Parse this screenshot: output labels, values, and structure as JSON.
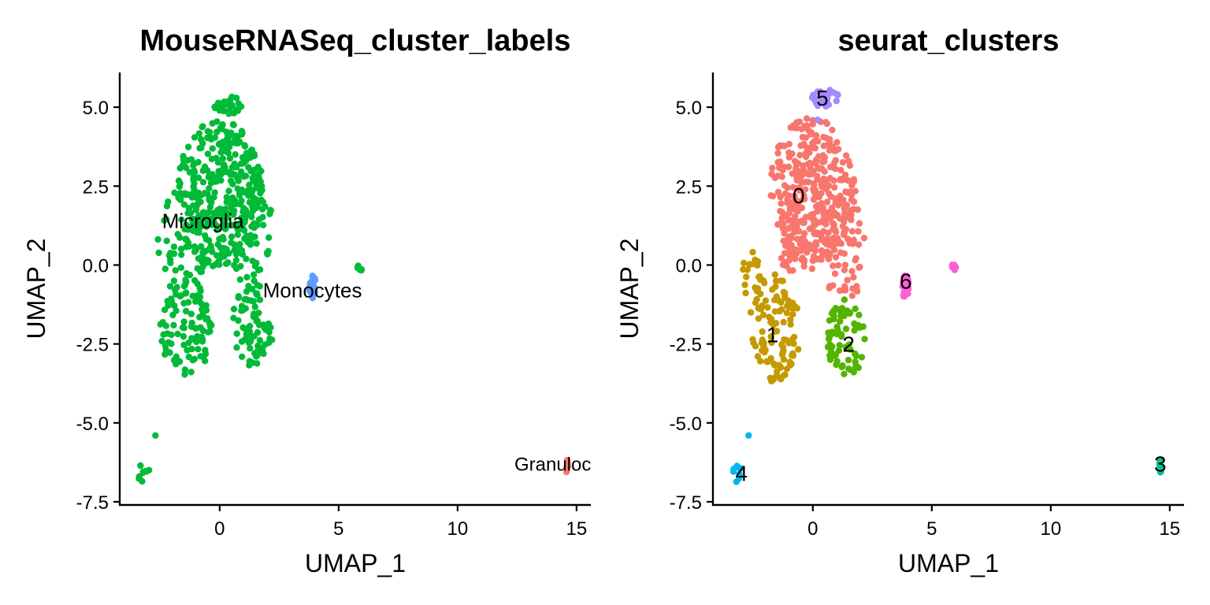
{
  "chart_data": [
    {
      "type": "scatter",
      "title": "MouseRNASeq_cluster_labels",
      "xlabel": "UMAP_1",
      "ylabel": "UMAP_2",
      "xlim": [
        -4.2,
        15.6
      ],
      "ylim": [
        -7.6,
        6.1
      ],
      "xticks": [
        0,
        5,
        10,
        15
      ],
      "xtick_labels": [
        "0",
        "5",
        "10",
        "15"
      ],
      "yticks": [
        5.0,
        2.5,
        0.0,
        -2.5,
        -5.0,
        -7.5
      ],
      "ytick_labels": [
        "5.0",
        "2.5",
        "0.0",
        "-2.5",
        "-5.0",
        "-7.5"
      ],
      "legend": "none",
      "grid": false,
      "groups": [
        {
          "name": "Microglia",
          "color": "#00BA38",
          "label": "Microglia",
          "label_x": -0.7,
          "label_y": 1.4,
          "label_size": 26
        },
        {
          "name": "Monocytes",
          "color": "#619CFF",
          "label": "Monocytes",
          "label_x": 3.9,
          "label_y": -0.8,
          "label_size": 26
        },
        {
          "name": "Granulocytes",
          "color": "#F8766D",
          "label": "Granuloc",
          "label_x": 14.0,
          "label_y": -6.3,
          "label_size": 24
        }
      ],
      "points": [
        {
          "group": "Microglia",
          "regions": [
            {
              "cx": 0.0,
              "cy": 2.2,
              "rx": 1.8,
              "ry": 2.4,
              "n": 330,
              "seed": 11
            },
            {
              "cx": -1.5,
              "cy": 0.6,
              "rx": 1.1,
              "ry": 2.0,
              "n": 60,
              "seed": 12
            },
            {
              "cx": 1.3,
              "cy": 1.4,
              "rx": 0.9,
              "ry": 2.2,
              "n": 60,
              "seed": 13
            },
            {
              "cx": 0.3,
              "cy": 5.1,
              "rx": 0.7,
              "ry": 0.35,
              "n": 28,
              "seed": 14
            },
            {
              "cx": -1.4,
              "cy": -2.0,
              "rx": 1.1,
              "ry": 1.5,
              "n": 90,
              "seed": 15
            },
            {
              "cx": 1.4,
              "cy": -1.9,
              "rx": 0.9,
              "ry": 1.3,
              "n": 70,
              "seed": 16
            },
            {
              "cx": 5.9,
              "cy": -0.1,
              "rx": 0.15,
              "ry": 0.12,
              "n": 6,
              "seed": 17
            },
            {
              "cx": -3.2,
              "cy": -6.6,
              "rx": 0.25,
              "ry": 0.3,
              "n": 9,
              "seed": 18
            }
          ],
          "extra": [
            [
              -2.7,
              -5.4
            ]
          ]
        },
        {
          "group": "Monocytes",
          "regions": [
            {
              "cx": 3.9,
              "cy": -0.7,
              "rx": 0.14,
              "ry": 0.38,
              "n": 24,
              "seed": 19
            }
          ]
        },
        {
          "group": "Granulocytes",
          "regions": [
            {
              "cx": 14.6,
              "cy": -6.35,
              "rx": 0.05,
              "ry": 0.25,
              "n": 8,
              "seed": 20
            }
          ]
        }
      ]
    },
    {
      "type": "scatter",
      "title": "seurat_clusters",
      "xlabel": "UMAP_1",
      "ylabel": "UMAP_2",
      "xlim": [
        -4.2,
        15.6
      ],
      "ylim": [
        -7.6,
        6.1
      ],
      "xticks": [
        0,
        5,
        10,
        15
      ],
      "xtick_labels": [
        "0",
        "5",
        "10",
        "15"
      ],
      "yticks": [
        5.0,
        2.5,
        0.0,
        -2.5,
        -5.0,
        -7.5
      ],
      "ytick_labels": [
        "5.0",
        "2.5",
        "0.0",
        "-2.5",
        "-5.0",
        "-7.5"
      ],
      "legend": "none",
      "grid": false,
      "groups": [
        {
          "name": "0",
          "color": "#F8766D",
          "label": "0",
          "label_x": -0.6,
          "label_y": 2.2,
          "label_size": 28
        },
        {
          "name": "1",
          "color": "#C49A00",
          "label": "1",
          "label_x": -1.7,
          "label_y": -2.2,
          "label_size": 28
        },
        {
          "name": "2",
          "color": "#53B400",
          "label": "2",
          "label_x": 1.5,
          "label_y": -2.5,
          "label_size": 28
        },
        {
          "name": "3",
          "color": "#00C094",
          "label": "3",
          "label_x": 14.6,
          "label_y": -6.3,
          "label_size": 28
        },
        {
          "name": "4",
          "color": "#00B6EB",
          "label": "4",
          "label_x": -3.0,
          "label_y": -6.6,
          "label_size": 28
        },
        {
          "name": "5",
          "color": "#A58AFF",
          "label": "5",
          "label_x": 0.4,
          "label_y": 5.3,
          "label_size": 28
        },
        {
          "name": "6",
          "color": "#FB61D7",
          "label": "6",
          "label_x": 3.9,
          "label_y": -0.5,
          "label_size": 28
        }
      ],
      "points": [
        {
          "group": "0",
          "regions": [
            {
              "cx": 0.0,
              "cy": 2.4,
              "rx": 1.8,
              "ry": 2.3,
              "n": 330,
              "seed": 31
            },
            {
              "cx": 1.3,
              "cy": 0.5,
              "rx": 0.9,
              "ry": 1.8,
              "n": 55,
              "seed": 32
            },
            {
              "cx": -0.5,
              "cy": 0.6,
              "rx": 1.0,
              "ry": 1.0,
              "n": 40,
              "seed": 33
            }
          ]
        },
        {
          "group": "1",
          "regions": [
            {
              "cx": -1.6,
              "cy": -2.0,
              "rx": 1.1,
              "ry": 1.7,
              "n": 110,
              "seed": 34
            },
            {
              "cx": -2.6,
              "cy": -0.3,
              "rx": 0.4,
              "ry": 0.8,
              "n": 20,
              "seed": 35
            }
          ]
        },
        {
          "group": "2",
          "regions": [
            {
              "cx": 1.4,
              "cy": -2.3,
              "rx": 0.8,
              "ry": 1.3,
              "n": 70,
              "seed": 36
            }
          ]
        },
        {
          "group": "3",
          "regions": [
            {
              "cx": 14.6,
              "cy": -6.35,
              "rx": 0.05,
              "ry": 0.25,
              "n": 8,
              "seed": 37
            }
          ]
        },
        {
          "group": "4",
          "regions": [
            {
              "cx": -3.2,
              "cy": -6.6,
              "rx": 0.25,
              "ry": 0.3,
              "n": 9,
              "seed": 38
            }
          ],
          "extra": [
            [
              -2.7,
              -5.4
            ]
          ]
        },
        {
          "group": "5",
          "regions": [
            {
              "cx": 0.5,
              "cy": 5.3,
              "rx": 0.6,
              "ry": 0.3,
              "n": 30,
              "seed": 39
            }
          ],
          "extra": [
            [
              0.2,
              4.6
            ]
          ]
        },
        {
          "group": "6",
          "regions": [
            {
              "cx": 3.9,
              "cy": -0.7,
              "rx": 0.14,
              "ry": 0.38,
              "n": 24,
              "seed": 40
            },
            {
              "cx": 5.9,
              "cy": -0.1,
              "rx": 0.15,
              "ry": 0.12,
              "n": 6,
              "seed": 41
            }
          ]
        }
      ]
    }
  ]
}
